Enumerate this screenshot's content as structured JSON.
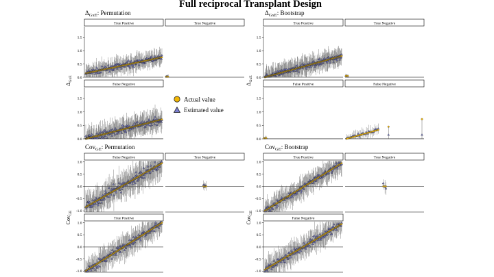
{
  "title": "Full reciprocal Transplant Design",
  "legend": {
    "actual": "Actual value",
    "estimated": "Estimated value",
    "actual_color": "#f2b705",
    "estimated_color": "#7b7fd1"
  },
  "chart_data": [
    {
      "type": "scatter",
      "quadrant": "delta-permutation",
      "title_main": "Δ",
      "title_sub": "GxE",
      "title_rest": ": Permutation",
      "ylabel_main": "Δ",
      "ylabel_sub": "GxE",
      "ylim": [
        0,
        1.9
      ],
      "yticks": [
        0.0,
        0.5,
        1.0,
        1.5
      ],
      "ytick_labels": [
        "0.0",
        "0.5",
        "1.0",
        "1.5"
      ],
      "panels": [
        {
          "label": "True Positive",
          "actual_range": [
            0.15,
            0.75
          ],
          "n": 170,
          "spread": 0.16
        },
        {
          "label": "True Negative",
          "actual_range": [
            0.02,
            0.02
          ],
          "n": 4,
          "spread": 0.05
        },
        {
          "label": "False Negative",
          "actual_range": [
            0.0,
            0.72
          ],
          "n": 190,
          "spread": 0.2
        }
      ]
    },
    {
      "type": "scatter",
      "quadrant": "delta-bootstrap",
      "title_main": "Δ",
      "title_sub": "GxE",
      "title_rest": ": Bootstrap",
      "ylabel_main": "Δ",
      "ylabel_sub": "GxE",
      "ylim": [
        0,
        1.9
      ],
      "yticks": [
        0.0,
        0.5,
        1.0,
        1.5
      ],
      "ytick_labels": [
        "0.0",
        "0.5",
        "1.0",
        "1.5"
      ],
      "panels": [
        {
          "label": "True Positive",
          "actual_range": [
            0.0,
            0.8
          ],
          "n": 200,
          "spread": 0.18
        },
        {
          "label": "True Negative",
          "actual_range": [
            0.05,
            0.05
          ],
          "n": 3,
          "spread": 0.05
        },
        {
          "label": "False Positive",
          "actual_range": [
            0.02,
            0.03
          ],
          "n": 3,
          "spread": 0.04
        },
        {
          "label": "False Negative",
          "actual_range": [
            0.0,
            0.33
          ],
          "n": 28,
          "spread": 0.1,
          "extra_points": [
            [
              0.55,
              0.45
            ],
            [
              1.0,
              0.73
            ]
          ]
        }
      ]
    },
    {
      "type": "scatter",
      "quadrant": "cov-permutation",
      "title_main": "Cov",
      "title_sub": "GE",
      "title_rest": ": Permutation",
      "ylabel_main": "Cov",
      "ylabel_sub": "GE",
      "ylim": [
        -1.05,
        1.05
      ],
      "yticks": [
        -1.0,
        -0.5,
        0.0,
        0.5,
        1.0
      ],
      "ytick_labels": [
        "-1.0",
        "-0.5",
        "0.0",
        "0.5",
        "1.0"
      ],
      "panels": [
        {
          "label": "False Negative",
          "actual_range": [
            -0.85,
            0.95
          ],
          "n": 180,
          "spread": 0.3
        },
        {
          "label": "True Negative",
          "actual_range": [
            0.0,
            0.0
          ],
          "n": 5,
          "spread": 0.12
        },
        {
          "label": "True Positive",
          "actual_range": [
            -1.0,
            1.0
          ],
          "n": 170,
          "spread": 0.25
        }
      ]
    },
    {
      "type": "scatter",
      "quadrant": "cov-bootstrap",
      "title_main": "Cov",
      "title_sub": "GE",
      "title_rest": ": Bootstrap",
      "ylabel_main": "Cov",
      "ylabel_sub": "GE",
      "ylim": [
        -1.05,
        1.05
      ],
      "yticks": [
        -1.0,
        -0.5,
        0.0,
        0.5,
        1.0
      ],
      "ytick_labels": [
        "-1.0",
        "-0.5",
        "0.0",
        "0.5",
        "1.0"
      ],
      "panels": [
        {
          "label": "True Positive",
          "actual_range": [
            -1.0,
            0.95
          ],
          "n": 170,
          "spread": 0.22
        },
        {
          "label": "True Negative",
          "actual_range": [
            0.0,
            0.0
          ],
          "n": 4,
          "spread": 0.14
        },
        {
          "label": "False Negative",
          "actual_range": [
            -0.95,
            0.95
          ],
          "n": 160,
          "spread": 0.25
        }
      ]
    }
  ]
}
